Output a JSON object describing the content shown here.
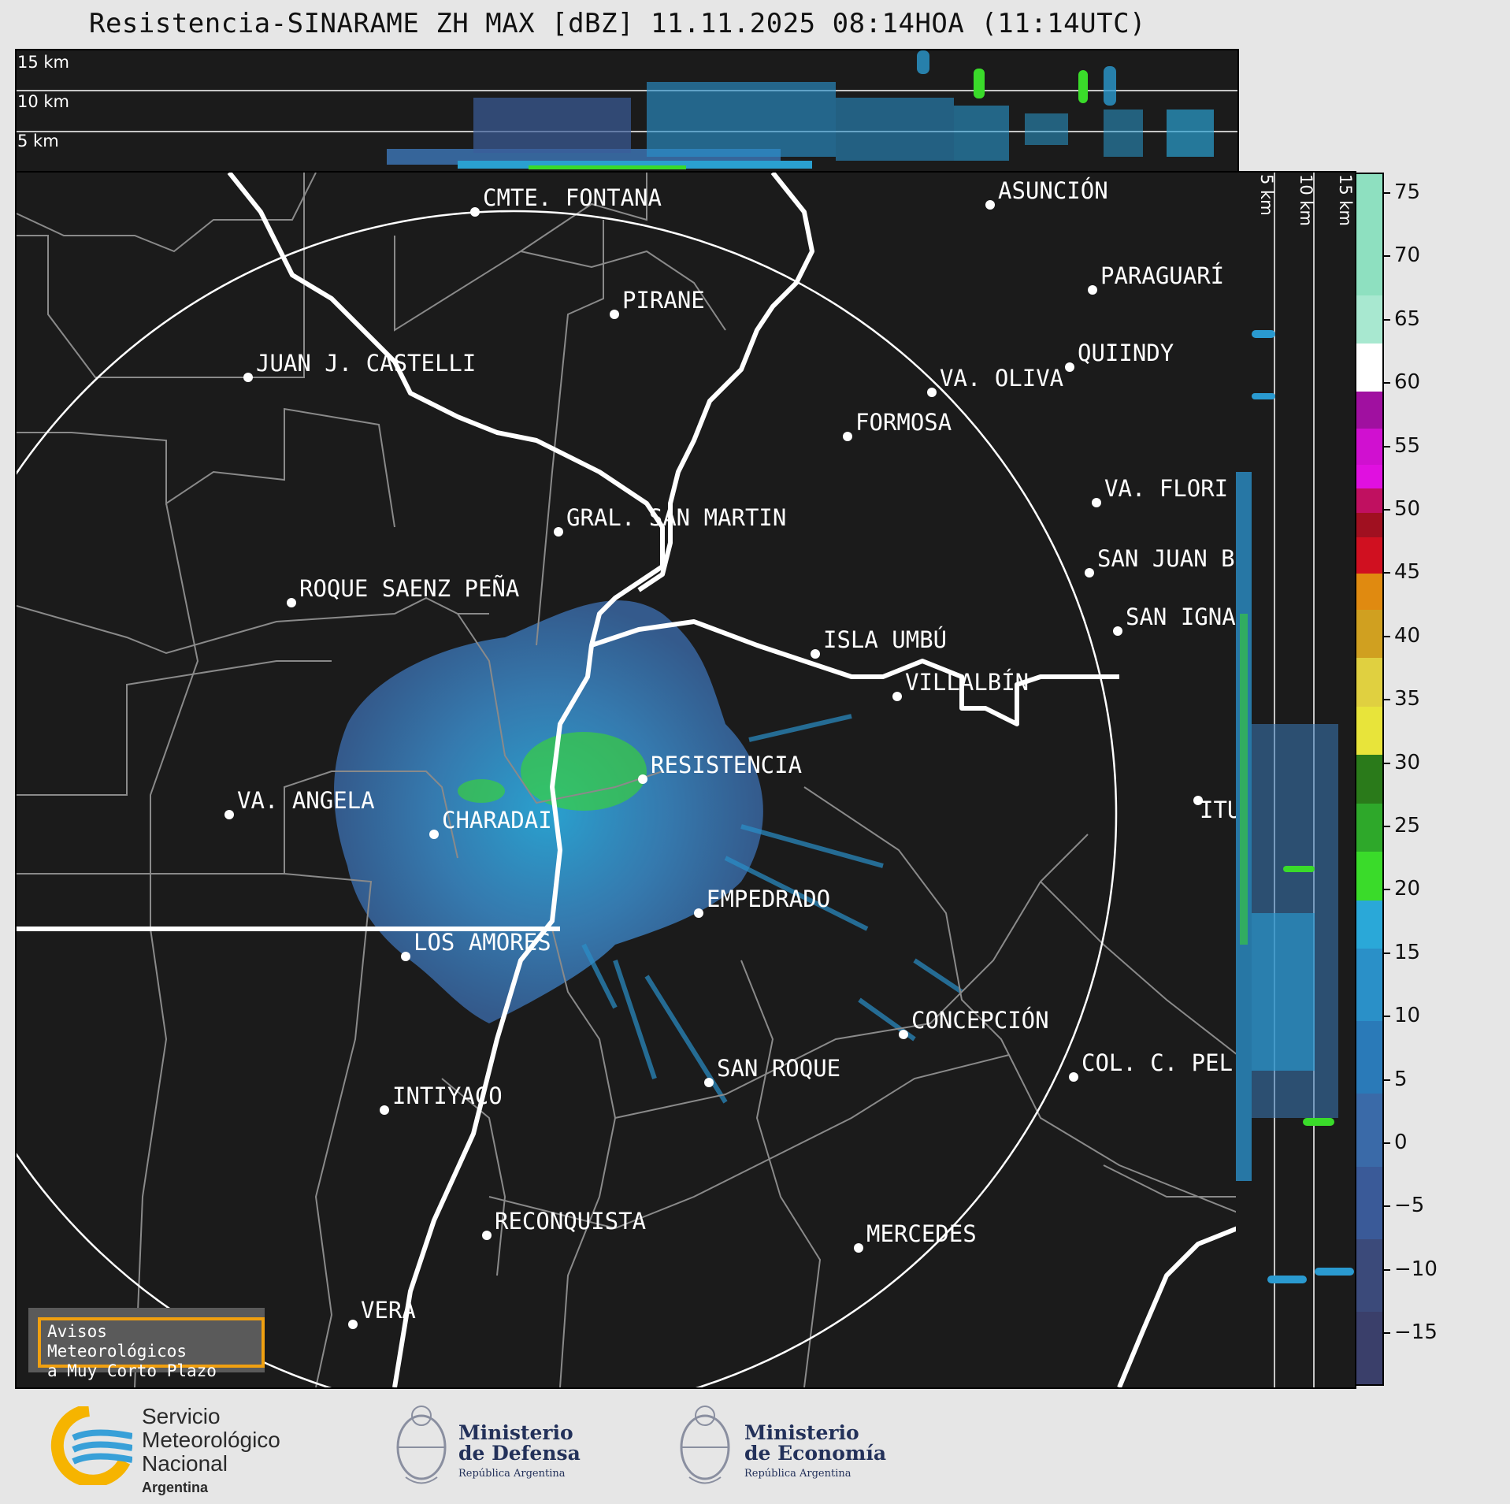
{
  "title": "Resistencia-SINARAME ZH MAX [dBZ] 11.11.2025 08:14HOA (11:14UTC)",
  "top_panel": {
    "altitudes": [
      "15 km",
      "10 km",
      "5 km"
    ]
  },
  "side_panel": {
    "altitudes": [
      "5 km",
      "10 km",
      "15 km"
    ]
  },
  "cities": [
    {
      "name": "CMTE. FONTANA"
    },
    {
      "name": "ASUNCIÓN"
    },
    {
      "name": "PIRANE"
    },
    {
      "name": "PARAGUARÍ"
    },
    {
      "name": "JUAN J. CASTELLI"
    },
    {
      "name": "VA. OLIVA"
    },
    {
      "name": "QUIINDY"
    },
    {
      "name": "FORMOSA"
    },
    {
      "name": "VA. FLORI"
    },
    {
      "name": "GRAL. SAN MARTIN"
    },
    {
      "name": "SAN JUAN B"
    },
    {
      "name": "ROQUE SAENZ PEÑA"
    },
    {
      "name": "SAN IGNA"
    },
    {
      "name": "ISLA UMBÚ"
    },
    {
      "name": "VILLALBÍN"
    },
    {
      "name": "RESISTENCIA"
    },
    {
      "name": "VA. ANGELA"
    },
    {
      "name": "CHARADAI"
    },
    {
      "name": "ITU"
    },
    {
      "name": "EMPEDRADO"
    },
    {
      "name": "LOS AMORES"
    },
    {
      "name": "CONCEPCIÓN"
    },
    {
      "name": "SAN ROQUE"
    },
    {
      "name": "COL. C. PEL"
    },
    {
      "name": "INTIYACO"
    },
    {
      "name": "RECONQUISTA"
    },
    {
      "name": "MERCEDES"
    },
    {
      "name": "VERA"
    }
  ],
  "colorbar": {
    "tick_labels": [
      "75",
      "70",
      "65",
      "60",
      "55",
      "50",
      "45",
      "40",
      "35",
      "30",
      "25",
      "20",
      "15",
      "10",
      "5",
      "0",
      "−5",
      "−10",
      "−15"
    ],
    "colors": {
      "blue_low": "#3b4a7a",
      "blue_mid": "#3a7ab8",
      "cyan": "#2aa8d8",
      "green": "#3adb2a",
      "yellow": "#e8e43a",
      "orange": "#e08a10",
      "red": "#d01020",
      "magenta": "#e010e0",
      "white": "#ffffff",
      "mint": "#8ee0c0"
    }
  },
  "avisos": {
    "line1": "Avisos Meteorológicos",
    "line2": "a Muy Corto Plazo"
  },
  "logos": {
    "smn_line1": "Servicio",
    "smn_line2": "Meteorológico",
    "smn_line3": "Nacional",
    "smn_line4": "Argentina",
    "defensa_line1": "Ministerio",
    "defensa_line2": "de Defensa",
    "defensa_line3": "República Argentina",
    "economia_line1": "Ministerio",
    "economia_line2": "de Economía",
    "economia_line3": "República Argentina"
  }
}
